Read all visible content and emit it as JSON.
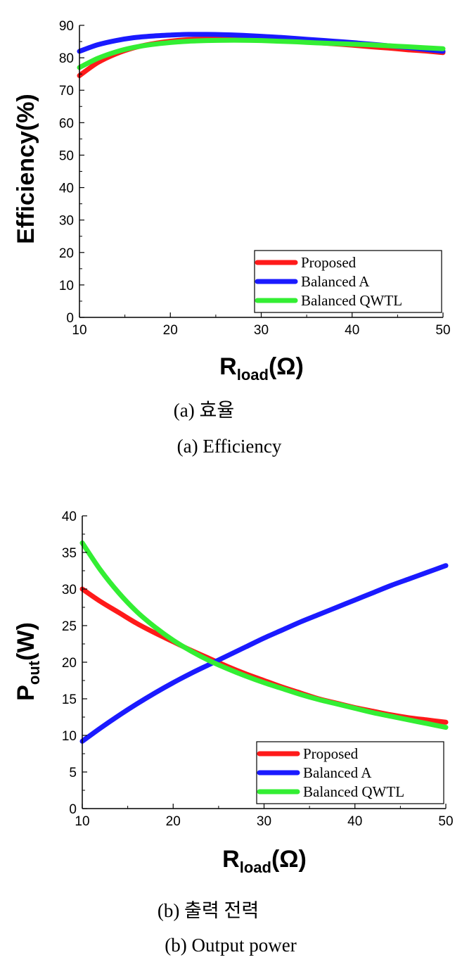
{
  "colors": {
    "proposed": "#ff1a1a",
    "balanced_a": "#1a1aff",
    "balanced_qwtl": "#33ee33"
  },
  "chart_data": [
    {
      "type": "line",
      "ylabel": "Efficiency(%)",
      "xlabel_main": "R",
      "xlabel_sub": "load",
      "xlabel_unit": "(Ω)",
      "xlim": [
        10,
        50
      ],
      "ylim": [
        0,
        90
      ],
      "xticks": [
        10,
        20,
        30,
        40,
        50
      ],
      "yticks": [
        0,
        10,
        20,
        30,
        40,
        50,
        60,
        70,
        80,
        90
      ],
      "legend_position": "bottom-right",
      "x": [
        10,
        12,
        14,
        16,
        18,
        20,
        22,
        24,
        26,
        28,
        30,
        32,
        34,
        36,
        38,
        40,
        42,
        44,
        46,
        48,
        50
      ],
      "series": [
        {
          "name": "Proposed",
          "color_key": "proposed",
          "values": [
            74.5,
            78.5,
            81.2,
            83.1,
            84.3,
            85.1,
            85.6,
            85.8,
            85.9,
            85.8,
            85.6,
            85.3,
            85.0,
            84.7,
            84.3,
            83.9,
            83.4,
            83.0,
            82.5,
            82.1,
            81.6
          ]
        },
        {
          "name": "Balanced A",
          "color_key": "balanced_a",
          "values": [
            82.0,
            84.0,
            85.3,
            86.2,
            86.7,
            87.0,
            87.2,
            87.2,
            87.1,
            86.9,
            86.6,
            86.3,
            85.9,
            85.5,
            85.1,
            84.7,
            84.2,
            83.7,
            83.2,
            82.6,
            82.0
          ]
        },
        {
          "name": "Balanced QWTL",
          "color_key": "balanced_qwtl",
          "values": [
            77.0,
            79.8,
            81.8,
            83.2,
            84.1,
            84.7,
            85.1,
            85.3,
            85.4,
            85.4,
            85.3,
            85.1,
            84.9,
            84.6,
            84.4,
            84.2,
            84.0,
            83.7,
            83.4,
            83.1,
            82.8
          ]
        }
      ],
      "caption_ko": "(a) 효율",
      "caption_en": "(a) Efficiency"
    },
    {
      "type": "line",
      "ylabel_main": "P",
      "ylabel_sub": "out",
      "ylabel_unit": "(W)",
      "xlabel_main": "R",
      "xlabel_sub": "load",
      "xlabel_unit": "(Ω)",
      "xlim": [
        10,
        50
      ],
      "ylim": [
        0,
        40
      ],
      "xticks": [
        10,
        20,
        30,
        40,
        50
      ],
      "yticks": [
        0,
        5,
        10,
        15,
        20,
        25,
        30,
        35,
        40
      ],
      "legend_position": "bottom-right",
      "x": [
        10,
        12,
        14,
        16,
        18,
        20,
        22,
        24,
        26,
        28,
        30,
        32,
        34,
        36,
        38,
        40,
        42,
        44,
        46,
        48,
        50
      ],
      "series": [
        {
          "name": "Proposed",
          "color_key": "proposed",
          "values": [
            30.0,
            28.3,
            26.8,
            25.3,
            24.0,
            22.8,
            21.6,
            20.5,
            19.4,
            18.4,
            17.5,
            16.6,
            15.8,
            15.0,
            14.4,
            13.8,
            13.3,
            12.8,
            12.4,
            12.1,
            11.8
          ]
        },
        {
          "name": "Balanced A",
          "color_key": "balanced_a",
          "values": [
            9.2,
            11.0,
            12.7,
            14.3,
            15.8,
            17.2,
            18.5,
            19.7,
            20.9,
            22.1,
            23.3,
            24.4,
            25.5,
            26.5,
            27.5,
            28.5,
            29.5,
            30.5,
            31.4,
            32.3,
            33.2
          ]
        },
        {
          "name": "Balanced QWTL",
          "color_key": "balanced_qwtl",
          "values": [
            36.3,
            32.6,
            29.5,
            26.9,
            24.8,
            23.0,
            21.5,
            20.2,
            19.1,
            18.1,
            17.2,
            16.4,
            15.6,
            14.9,
            14.3,
            13.7,
            13.1,
            12.6,
            12.1,
            11.6,
            11.1
          ]
        }
      ],
      "caption_ko": "(b) 출력 전력",
      "caption_en": "(b) Output power"
    }
  ]
}
